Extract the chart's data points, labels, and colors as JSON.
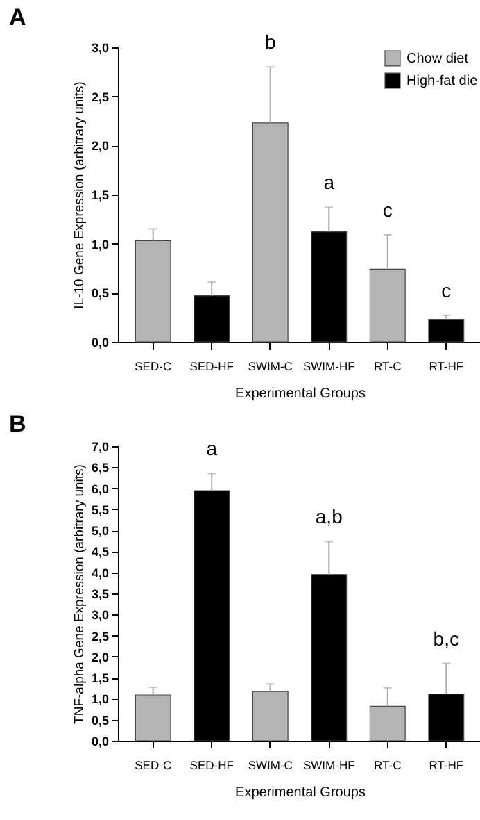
{
  "chart_data": [
    {
      "type": "bar",
      "title": "A",
      "xlabel": "Experimental Groups",
      "ylabel": "IL-10 Gene Expression (arbitrary units)",
      "categories": [
        "SED-C",
        "SED-HF",
        "SWIM-C",
        "SWIM-HF",
        "RT-C",
        "RT-HF"
      ],
      "series": [
        {
          "name": "Chow diet",
          "color": "#b4b4b4",
          "values": [
            1.03,
            null,
            2.23,
            null,
            0.74,
            null
          ],
          "errors": [
            [
              1.03,
              1.15
            ],
            null,
            [
              2.23,
              2.8
            ],
            null,
            [
              0.74,
              1.09
            ],
            null
          ]
        },
        {
          "name": "High-fat die",
          "color": "#000000",
          "values": [
            null,
            0.47,
            null,
            1.12,
            null,
            0.23
          ],
          "errors": [
            null,
            [
              0.47,
              0.61
            ],
            null,
            [
              1.12,
              1.37
            ],
            null,
            [
              0.23,
              0.27
            ]
          ]
        }
      ],
      "ylim": [
        0,
        3
      ],
      "yticks": [
        {
          "value": 0,
          "label": "0,0"
        },
        {
          "value": 0.5,
          "label": "0,5"
        },
        {
          "value": 1,
          "label": "1,0"
        },
        {
          "value": 1.5,
          "label": "1,5"
        },
        {
          "value": 2,
          "label": "2,0"
        },
        {
          "value": 2.5,
          "label": "2,5"
        },
        {
          "value": 3,
          "label": "3,0"
        }
      ],
      "annotations": [
        {
          "text": "b",
          "x": "SWIM-C",
          "y": 2.8
        },
        {
          "text": "a",
          "x": "SWIM-HF",
          "y": 1.37
        },
        {
          "text": "c",
          "x": "RT-C",
          "y": 1.09
        },
        {
          "text": "c",
          "x": "RT-HF",
          "y": 0.27
        }
      ],
      "legend": "top right",
      "grid": false
    },
    {
      "type": "bar",
      "title": "B",
      "xlabel": "Experimental Groups",
      "ylabel": "TNF-alpha Gene Expression (arbitrary units)",
      "categories": [
        "SED-C",
        "SED-HF",
        "SWIM-C",
        "SWIM-HF",
        "RT-C",
        "RT-HF"
      ],
      "series": [
        {
          "color": "#b4b4b4",
          "values": [
            1.09,
            null,
            1.17,
            null,
            0.82,
            null
          ],
          "errors": [
            [
              1.09,
              1.27
            ],
            null,
            [
              1.17,
              1.35
            ],
            null,
            [
              0.82,
              1.26
            ],
            null
          ]
        },
        {
          "color": "#000000",
          "values": [
            null,
            5.94,
            null,
            3.95,
            null,
            1.11
          ],
          "errors": [
            null,
            [
              5.94,
              6.35
            ],
            null,
            [
              3.95,
              4.73
            ],
            null,
            [
              1.11,
              1.84
            ]
          ]
        }
      ],
      "ylim": [
        0,
        7
      ],
      "yticks": [
        {
          "value": 0,
          "label": "0,0"
        },
        {
          "value": 0.5,
          "label": "0,5"
        },
        {
          "value": 1,
          "label": "1,0"
        },
        {
          "value": 1.5,
          "label": "1,5"
        },
        {
          "value": 2,
          "label": "2,0"
        },
        {
          "value": 2.5,
          "label": "2,5"
        },
        {
          "value": 3,
          "label": "3,0"
        },
        {
          "value": 3.5,
          "label": "3,5"
        },
        {
          "value": 4,
          "label": "4,0"
        },
        {
          "value": 4.5,
          "label": "4,5"
        },
        {
          "value": 5,
          "label": "5,0"
        },
        {
          "value": 5.5,
          "label": "5,5"
        },
        {
          "value": 6,
          "label": "6,0"
        },
        {
          "value": 6.5,
          "label": "6,5"
        },
        {
          "value": 7,
          "label": "7,0"
        }
      ],
      "annotations": [
        {
          "text": "a",
          "x": "SED-HF",
          "y": 6.35
        },
        {
          "text": "a,b",
          "x": "SWIM-HF",
          "y": 4.73
        },
        {
          "text": "b,c",
          "x": "RT-HF",
          "y": 1.84
        }
      ],
      "legend": false,
      "grid": false
    }
  ]
}
